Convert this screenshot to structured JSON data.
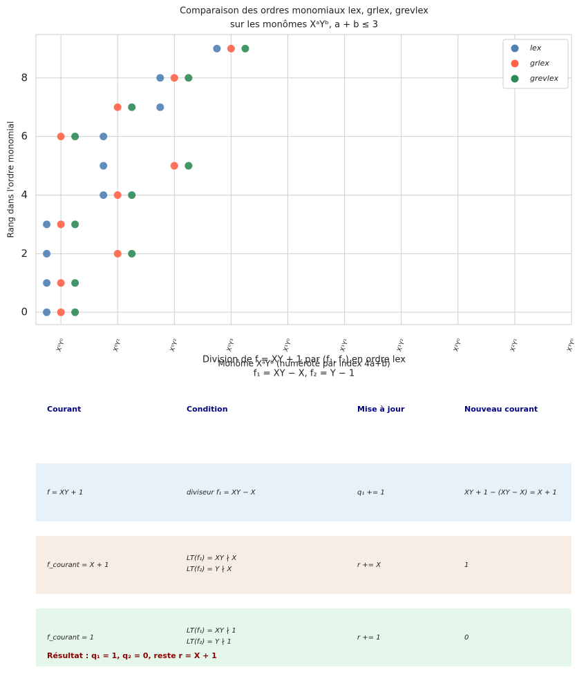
{
  "chart_data": {
    "type": "scatter",
    "title": "Comparaison des ordres monomiaux lex, grlex, grevlex",
    "subtitle": "sur les monômes XᵃYᵇ, a + b ≤ 3",
    "x_label": "Monôme XᵃYᵇ (numéroté par index 4a+b)",
    "y_label": "Rang dans l'ordre monomial",
    "xlim": [
      -0.44,
      9
    ],
    "ylim": [
      -0.42,
      9.48
    ],
    "xticks": [
      {
        "value": 0,
        "label": "X⁰Y⁰"
      },
      {
        "value": 1,
        "label": "X⁰Y¹"
      },
      {
        "value": 2,
        "label": "X⁰Y²"
      },
      {
        "value": 3,
        "label": "X⁰Y³"
      },
      {
        "value": 4,
        "label": "X¹Y⁰"
      },
      {
        "value": 5,
        "label": "X¹Y¹"
      },
      {
        "value": 6,
        "label": "X¹Y²"
      },
      {
        "value": 7,
        "label": "X²Y⁰"
      },
      {
        "value": 8,
        "label": "X²Y¹"
      },
      {
        "value": 9,
        "label": "X³Y⁰"
      }
    ],
    "yticks": [
      0,
      2,
      4,
      6,
      8
    ],
    "grid": true,
    "legend": "upper right",
    "series": [
      {
        "name": "lex",
        "color": "#4f81b4",
        "x": [
          -0.25,
          -0.25,
          -0.25,
          -0.25,
          0.75,
          0.75,
          0.75,
          1.75,
          1.75,
          2.75
        ],
        "values": [
          0,
          1,
          2,
          3,
          4,
          5,
          6,
          7,
          8,
          9
        ]
      },
      {
        "name": "grlex",
        "color": "#ff6347",
        "x": [
          0,
          0,
          0,
          0,
          1,
          1,
          1,
          2,
          2,
          3
        ],
        "values": [
          0,
          1,
          3,
          6,
          2,
          4,
          7,
          5,
          8,
          9
        ]
      },
      {
        "name": "grevlex",
        "color": "#2e8b57",
        "x": [
          0.25,
          0.25,
          0.25,
          0.25,
          1.25,
          1.25,
          1.25,
          2.25,
          2.25,
          3.25
        ],
        "values": [
          0,
          1,
          3,
          6,
          2,
          4,
          7,
          5,
          8,
          9
        ]
      }
    ]
  },
  "table": {
    "title": "Division de f = XY + 1 par (f₁, f₂) en ordre lex",
    "subtitle": "f₁ = XY − X, f₂ = Y − 1",
    "header": [
      "Courant",
      "Condition",
      "Mise à jour",
      "Nouveau courant"
    ],
    "rows": [
      [
        "f = XY + 1",
        [
          "diviseur f₁ = XY − X"
        ],
        "q₁ += 1",
        "XY + 1 − (XY − X) = X + 1"
      ],
      [
        "f_courant = X + 1",
        [
          "LT(f₁) = XY ∤ X",
          "LT(f₂) = Y ∤ X"
        ],
        "r += X",
        "1"
      ],
      [
        "f_courant = 1",
        [
          "LT(f₁) = XY ∤ 1",
          "LT(f₂) = Y ∤ 1"
        ],
        "r += 1",
        "0"
      ]
    ],
    "result": "Résultat : q₁ = 1, q₂ = 0, reste r = X + 1"
  }
}
